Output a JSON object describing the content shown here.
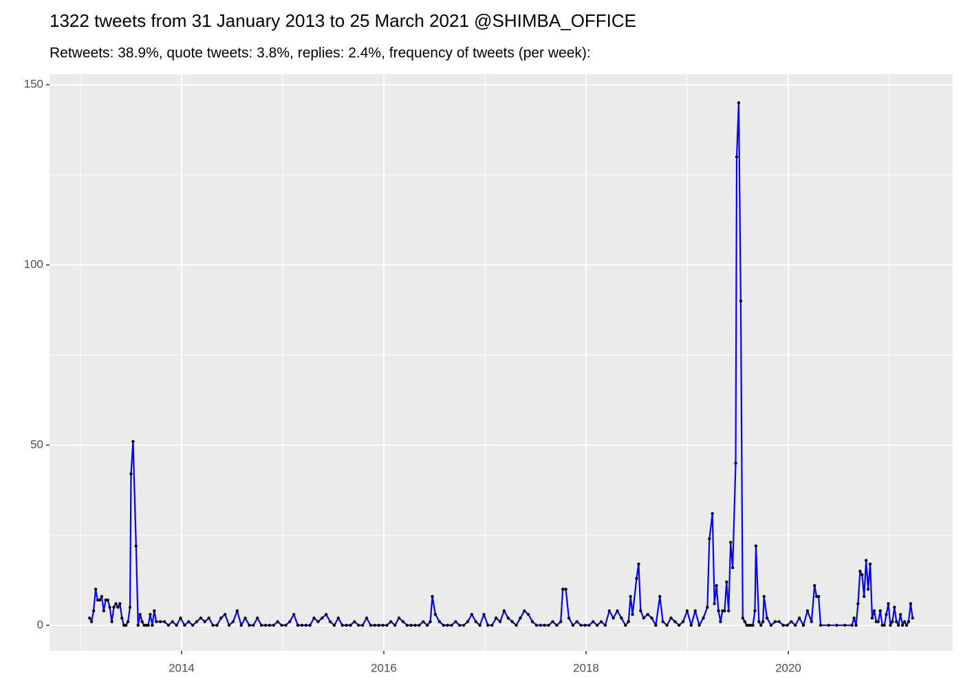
{
  "chart_data": {
    "type": "line",
    "title": "1322 tweets from 31 January 2013 to 25 March 2021 @SHIMBA_OFFICE",
    "subtitle": "Retweets: 38.9%, quote tweets: 3.8%, replies: 2.4%, frequency of tweets (per week):",
    "x": [
      2013.09,
      2013.11,
      2013.13,
      2013.15,
      2013.17,
      2013.19,
      2013.21,
      2013.23,
      2013.25,
      2013.27,
      2013.29,
      2013.31,
      2013.33,
      2013.35,
      2013.37,
      2013.39,
      2013.41,
      2013.43,
      2013.45,
      2013.47,
      2013.49,
      2013.5,
      2013.52,
      2013.55,
      2013.57,
      2013.59,
      2013.61,
      2013.63,
      2013.65,
      2013.67,
      2013.69,
      2013.71,
      2013.73,
      2013.75,
      2013.79,
      2013.83,
      2013.87,
      2013.91,
      2013.95,
      2013.99,
      2014.03,
      2014.07,
      2014.11,
      2014.15,
      2014.19,
      2014.23,
      2014.27,
      2014.31,
      2014.35,
      2014.39,
      2014.43,
      2014.47,
      2014.51,
      2014.55,
      2014.59,
      2014.63,
      2014.67,
      2014.71,
      2014.75,
      2014.79,
      2014.83,
      2014.87,
      2014.91,
      2014.95,
      2014.99,
      2015.03,
      2015.07,
      2015.11,
      2015.15,
      2015.19,
      2015.23,
      2015.27,
      2015.31,
      2015.35,
      2015.39,
      2015.43,
      2015.47,
      2015.51,
      2015.55,
      2015.59,
      2015.63,
      2015.67,
      2015.71,
      2015.75,
      2015.79,
      2015.83,
      2015.87,
      2015.91,
      2015.95,
      2015.99,
      2016.03,
      2016.07,
      2016.11,
      2016.15,
      2016.19,
      2016.23,
      2016.27,
      2016.31,
      2016.35,
      2016.39,
      2016.43,
      2016.46,
      2016.48,
      2016.51,
      2016.55,
      2016.59,
      2016.63,
      2016.67,
      2016.71,
      2016.75,
      2016.79,
      2016.83,
      2016.87,
      2016.91,
      2016.95,
      2016.99,
      2017.03,
      2017.07,
      2017.11,
      2017.15,
      2017.19,
      2017.23,
      2017.27,
      2017.31,
      2017.35,
      2017.39,
      2017.43,
      2017.47,
      2017.51,
      2017.55,
      2017.59,
      2017.63,
      2017.67,
      2017.71,
      2017.75,
      2017.77,
      2017.8,
      2017.83,
      2017.87,
      2017.91,
      2017.95,
      2017.99,
      2018.03,
      2018.07,
      2018.11,
      2018.15,
      2018.19,
      2018.23,
      2018.27,
      2018.31,
      2018.35,
      2018.39,
      2018.42,
      2018.44,
      2018.46,
      2018.5,
      2018.52,
      2018.54,
      2018.57,
      2018.61,
      2018.65,
      2018.69,
      2018.73,
      2018.76,
      2018.8,
      2018.84,
      2018.88,
      2018.92,
      2018.96,
      2019.0,
      2019.04,
      2019.08,
      2019.12,
      2019.16,
      2019.2,
      2019.22,
      2019.25,
      2019.27,
      2019.29,
      2019.31,
      2019.33,
      2019.35,
      2019.37,
      2019.39,
      2019.41,
      2019.43,
      2019.45,
      2019.48,
      2019.49,
      2019.51,
      2019.53,
      2019.55,
      2019.57,
      2019.59,
      2019.61,
      2019.63,
      2019.65,
      2019.67,
      2019.68,
      2019.71,
      2019.73,
      2019.75,
      2019.76,
      2019.79,
      2019.83,
      2019.87,
      2019.91,
      2019.95,
      2019.99,
      2020.03,
      2020.07,
      2020.11,
      2020.15,
      2020.19,
      2020.23,
      2020.26,
      2020.28,
      2020.3,
      2020.32,
      2020.4,
      2020.48,
      2020.56,
      2020.63,
      2020.65,
      2020.67,
      2020.69,
      2020.71,
      2020.73,
      2020.75,
      2020.77,
      2020.79,
      2020.81,
      2020.83,
      2020.85,
      2020.87,
      2020.89,
      2020.91,
      2020.93,
      2020.95,
      2020.97,
      2020.99,
      2021.01,
      2021.03,
      2021.05,
      2021.07,
      2021.09,
      2021.11,
      2021.13,
      2021.15,
      2021.17,
      2021.19,
      2021.21,
      2021.23
    ],
    "series": [
      {
        "color": "#0000ff",
        "values": [
          2,
          1,
          4,
          10,
          7,
          7,
          8,
          4,
          7,
          7,
          5,
          1,
          5,
          6,
          5,
          6,
          2,
          0,
          0,
          1,
          5,
          42,
          51,
          22,
          0,
          3,
          1,
          0,
          0,
          0,
          3,
          0,
          4,
          1,
          1,
          1,
          0,
          1,
          0,
          2,
          0,
          1,
          0,
          1,
          2,
          1,
          2,
          0,
          0,
          2,
          3,
          0,
          1,
          4,
          0,
          2,
          0,
          0,
          2,
          0,
          0,
          0,
          0,
          1,
          0,
          0,
          1,
          3,
          0,
          0,
          0,
          0,
          2,
          1,
          2,
          3,
          1,
          0,
          2,
          0,
          0,
          0,
          1,
          0,
          0,
          2,
          0,
          0,
          0,
          0,
          0,
          1,
          0,
          2,
          1,
          0,
          0,
          0,
          0,
          1,
          0,
          1,
          8,
          3,
          1,
          0,
          0,
          0,
          1,
          0,
          0,
          1,
          3,
          1,
          0,
          3,
          0,
          0,
          2,
          1,
          4,
          2,
          1,
          0,
          2,
          4,
          3,
          1,
          0,
          0,
          0,
          0,
          1,
          0,
          1,
          10,
          10,
          2,
          0,
          1,
          0,
          0,
          0,
          1,
          0,
          1,
          0,
          4,
          2,
          4,
          2,
          0,
          1,
          8,
          3,
          13,
          17,
          4,
          2,
          3,
          2,
          0,
          8,
          1,
          0,
          2,
          1,
          0,
          1,
          4,
          0,
          4,
          0,
          2,
          5,
          24,
          31,
          6,
          11,
          4,
          1,
          4,
          4,
          12,
          4,
          23,
          16,
          45,
          130,
          145,
          90,
          2,
          1,
          0,
          0,
          0,
          0,
          4,
          22,
          1,
          0,
          1,
          8,
          2,
          0,
          1,
          1,
          0,
          0,
          1,
          0,
          2,
          0,
          4,
          1,
          11,
          8,
          8,
          0,
          0,
          0,
          0,
          0,
          2,
          0,
          6,
          15,
          14,
          8,
          18,
          10,
          17,
          2,
          4,
          1,
          1,
          4,
          0,
          0,
          3,
          6,
          0,
          1,
          5,
          1,
          0,
          3,
          0,
          1,
          0,
          1,
          6,
          2
        ]
      }
    ],
    "xlim": [
      2012.694,
      2021.626
    ],
    "xticks": [
      2014,
      2016,
      2018,
      2020
    ],
    "ylim": [
      -7.1,
      152.9
    ],
    "yticks": [
      0,
      50,
      100,
      150
    ],
    "point_color": "#000000",
    "grid": true
  }
}
